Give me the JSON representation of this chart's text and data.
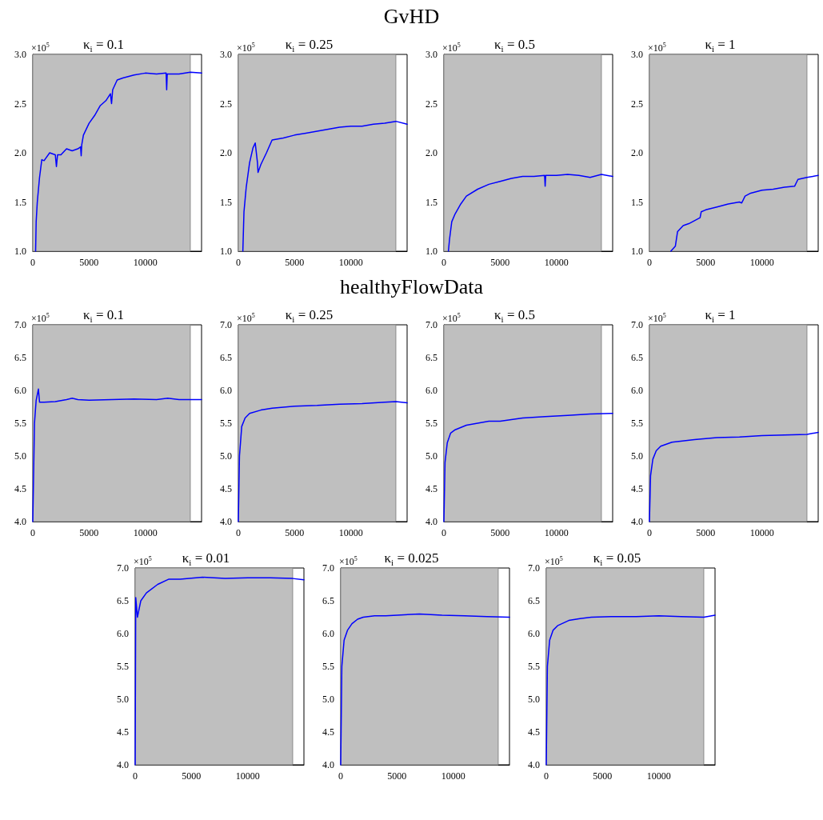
{
  "chart_data": [
    {
      "type": "other",
      "title": "GvHD"
    },
    {
      "type": "line",
      "title": "κ$_{i}$ = 0.1",
      "annotations": [
        "×10$^{5}$"
      ],
      "color": "#0000ff",
      "marker": "none",
      "line_style": "solid",
      "grid": false,
      "xlim": [
        0,
        15000
      ],
      "xticks": [
        0,
        5000,
        10000
      ],
      "ylim": [
        1,
        3
      ],
      "yticks": [
        {
          "value": 1,
          "label": "1.0"
        },
        {
          "value": 1.5,
          "label": "1.5"
        },
        {
          "value": 2,
          "label": "2.0"
        },
        {
          "value": 2.5,
          "label": "2.5"
        },
        {
          "value": 3,
          "label": "3.0"
        }
      ],
      "bands": [
        {
          "axis": "x",
          "from": 0,
          "to": 14000,
          "color": "#bfbfbf"
        }
      ],
      "x": [
        250,
        300,
        400,
        600,
        800,
        1000,
        1500,
        2000,
        2100,
        2200,
        2500,
        3000,
        3500,
        4000,
        4250,
        4300,
        4350,
        4500,
        5000,
        5500,
        6000,
        6500,
        6900,
        7000,
        7100,
        7500,
        8000,
        9000,
        10000,
        11000,
        11850,
        11900,
        11950,
        13000,
        14000,
        15000
      ],
      "values": [
        1.0,
        1.3,
        1.5,
        1.75,
        1.93,
        1.92,
        2.0,
        1.98,
        1.86,
        1.98,
        1.98,
        2.04,
        2.02,
        2.04,
        2.06,
        1.97,
        2.08,
        2.18,
        2.3,
        2.38,
        2.48,
        2.53,
        2.6,
        2.5,
        2.64,
        2.74,
        2.76,
        2.79,
        2.81,
        2.8,
        2.81,
        2.64,
        2.8,
        2.8,
        2.82,
        2.81
      ]
    },
    {
      "type": "line",
      "title": "κ$_{i}$ = 0.25",
      "annotations": [
        "×10$^{5}$"
      ],
      "color": "#0000ff",
      "marker": "none",
      "line_style": "solid",
      "grid": false,
      "xlim": [
        0,
        15000
      ],
      "xticks": [
        0,
        5000,
        10000
      ],
      "ylim": [
        1,
        3
      ],
      "yticks": [
        {
          "value": 1,
          "label": "1.0"
        },
        {
          "value": 1.5,
          "label": "1.5"
        },
        {
          "value": 2,
          "label": "2.0"
        },
        {
          "value": 2.5,
          "label": "2.5"
        },
        {
          "value": 3,
          "label": "3.0"
        }
      ],
      "bands": [
        {
          "axis": "x",
          "from": 0,
          "to": 14000,
          "color": "#bfbfbf"
        }
      ],
      "x": [
        400,
        500,
        700,
        1000,
        1300,
        1500,
        1700,
        1750,
        2000,
        2500,
        3000,
        4000,
        5000,
        6000,
        7000,
        8000,
        9000,
        10000,
        11000,
        12000,
        13000,
        14000,
        15000
      ],
      "values": [
        1.0,
        1.4,
        1.65,
        1.9,
        2.05,
        2.1,
        1.9,
        1.8,
        1.88,
        2.0,
        2.13,
        2.15,
        2.18,
        2.2,
        2.22,
        2.24,
        2.26,
        2.27,
        2.27,
        2.29,
        2.3,
        2.32,
        2.29
      ]
    },
    {
      "type": "line",
      "title": "κ$_{i}$ = 0.5",
      "annotations": [
        "×10$^{5}$"
      ],
      "color": "#0000ff",
      "marker": "none",
      "line_style": "solid",
      "grid": false,
      "xlim": [
        0,
        15000
      ],
      "xticks": [
        0,
        5000,
        10000
      ],
      "ylim": [
        1,
        3
      ],
      "yticks": [
        {
          "value": 1,
          "label": "1.0"
        },
        {
          "value": 1.5,
          "label": "1.5"
        },
        {
          "value": 2,
          "label": "2.0"
        },
        {
          "value": 2.5,
          "label": "2.5"
        },
        {
          "value": 3,
          "label": "3.0"
        }
      ],
      "bands": [
        {
          "axis": "x",
          "from": 0,
          "to": 14000,
          "color": "#bfbfbf"
        }
      ],
      "x": [
        400,
        500,
        700,
        1000,
        1500,
        2000,
        3000,
        4000,
        5000,
        6000,
        7000,
        8000,
        8950,
        9000,
        9050,
        10000,
        11000,
        12000,
        13000,
        14000,
        15000
      ],
      "values": [
        1.0,
        1.12,
        1.3,
        1.38,
        1.48,
        1.56,
        1.63,
        1.68,
        1.71,
        1.74,
        1.76,
        1.76,
        1.77,
        1.66,
        1.77,
        1.77,
        1.78,
        1.77,
        1.75,
        1.78,
        1.76
      ]
    },
    {
      "type": "line",
      "title": "κ$_{i}$ = 1",
      "annotations": [
        "×10$^{5}$"
      ],
      "color": "#0000ff",
      "marker": "none",
      "line_style": "solid",
      "grid": false,
      "xlim": [
        0,
        15000
      ],
      "xticks": [
        0,
        5000,
        10000
      ],
      "ylim": [
        1,
        3
      ],
      "yticks": [
        {
          "value": 1,
          "label": "1.0"
        },
        {
          "value": 1.5,
          "label": "1.5"
        },
        {
          "value": 2,
          "label": "2.0"
        },
        {
          "value": 2.5,
          "label": "2.5"
        },
        {
          "value": 3,
          "label": "3.0"
        }
      ],
      "bands": [
        {
          "axis": "x",
          "from": 0,
          "to": 14000,
          "color": "#bfbfbf"
        }
      ],
      "x": [
        1900,
        2300,
        2500,
        3000,
        3500,
        4000,
        4500,
        4600,
        5000,
        6000,
        7000,
        8000,
        8200,
        8500,
        9000,
        10000,
        11000,
        12000,
        12900,
        13200,
        14000,
        15000
      ],
      "values": [
        1.0,
        1.05,
        1.2,
        1.26,
        1.28,
        1.31,
        1.34,
        1.4,
        1.42,
        1.45,
        1.48,
        1.5,
        1.49,
        1.56,
        1.59,
        1.62,
        1.63,
        1.65,
        1.66,
        1.73,
        1.75,
        1.77
      ]
    },
    {
      "type": "other",
      "title": "healthyFlowData"
    },
    {
      "type": "line",
      "title": "κ$_{i}$ = 0.1",
      "annotations": [
        "×10$^{5}$"
      ],
      "color": "#0000ff",
      "marker": "none",
      "line_style": "solid",
      "grid": false,
      "xlim": [
        0,
        15000
      ],
      "xticks": [
        0,
        5000,
        10000
      ],
      "ylim": [
        4,
        7
      ],
      "yticks": [
        {
          "value": 4,
          "label": "4.0"
        },
        4.5,
        {
          "value": 5,
          "label": "5.0"
        },
        5.5,
        {
          "value": 6,
          "label": "6.0"
        },
        6.5,
        {
          "value": 7,
          "label": "7.0"
        }
      ],
      "bands": [
        {
          "axis": "x",
          "from": 0,
          "to": 14000,
          "color": "#bfbfbf"
        }
      ],
      "x": [
        0,
        150,
        300,
        500,
        600,
        1000,
        2000,
        3000,
        3500,
        4000,
        5000,
        7000,
        9000,
        11000,
        12000,
        13000,
        15000
      ],
      "values": [
        4.0,
        5.5,
        5.85,
        6.02,
        5.82,
        5.82,
        5.83,
        5.86,
        5.88,
        5.86,
        5.85,
        5.86,
        5.87,
        5.86,
        5.88,
        5.86,
        5.86
      ]
    },
    {
      "type": "line",
      "title": "κ$_{i}$ = 0.25",
      "annotations": [
        "×10$^{5}$"
      ],
      "color": "#0000ff",
      "marker": "none",
      "line_style": "solid",
      "grid": false,
      "xlim": [
        0,
        15000
      ],
      "xticks": [
        0,
        5000,
        10000
      ],
      "ylim": [
        4,
        7
      ],
      "yticks": [
        {
          "value": 4,
          "label": "4.0"
        },
        4.5,
        {
          "value": 5,
          "label": "5.0"
        },
        5.5,
        {
          "value": 6,
          "label": "6.0"
        },
        6.5,
        {
          "value": 7,
          "label": "7.0"
        }
      ],
      "bands": [
        {
          "axis": "x",
          "from": 0,
          "to": 14000,
          "color": "#bfbfbf"
        }
      ],
      "x": [
        0,
        100,
        300,
        600,
        1000,
        2000,
        3000,
        5000,
        7000,
        9000,
        11000,
        13000,
        14000,
        15000
      ],
      "values": [
        4.0,
        5.0,
        5.45,
        5.58,
        5.65,
        5.7,
        5.73,
        5.76,
        5.77,
        5.79,
        5.8,
        5.82,
        5.83,
        5.81
      ]
    },
    {
      "type": "line",
      "title": "κ$_{i}$ = 0.5",
      "annotations": [
        "×10$^{5}$"
      ],
      "color": "#0000ff",
      "marker": "none",
      "line_style": "solid",
      "grid": false,
      "xlim": [
        0,
        15000
      ],
      "xticks": [
        0,
        5000,
        10000
      ],
      "ylim": [
        4,
        7
      ],
      "yticks": [
        {
          "value": 4,
          "label": "4.0"
        },
        4.5,
        {
          "value": 5,
          "label": "5.0"
        },
        5.5,
        {
          "value": 6,
          "label": "6.0"
        },
        6.5,
        {
          "value": 7,
          "label": "7.0"
        }
      ],
      "bands": [
        {
          "axis": "x",
          "from": 0,
          "to": 14000,
          "color": "#bfbfbf"
        }
      ],
      "x": [
        0,
        100,
        300,
        600,
        1000,
        2000,
        3000,
        4000,
        5000,
        7000,
        9000,
        11000,
        13000,
        15000
      ],
      "values": [
        4.0,
        4.9,
        5.2,
        5.35,
        5.4,
        5.47,
        5.5,
        5.53,
        5.53,
        5.58,
        5.6,
        5.62,
        5.64,
        5.65
      ]
    },
    {
      "type": "line",
      "title": "κ$_{i}$ = 1",
      "annotations": [
        "×10$^{5}$"
      ],
      "color": "#0000ff",
      "marker": "none",
      "line_style": "solid",
      "grid": false,
      "xlim": [
        0,
        15000
      ],
      "xticks": [
        0,
        5000,
        10000
      ],
      "ylim": [
        4,
        7
      ],
      "yticks": [
        {
          "value": 4,
          "label": "4.0"
        },
        4.5,
        {
          "value": 5,
          "label": "5.0"
        },
        5.5,
        {
          "value": 6,
          "label": "6.0"
        },
        6.5,
        {
          "value": 7,
          "label": "7.0"
        }
      ],
      "bands": [
        {
          "axis": "x",
          "from": 0,
          "to": 14000,
          "color": "#bfbfbf"
        }
      ],
      "x": [
        0,
        100,
        300,
        600,
        1000,
        2000,
        4000,
        6000,
        8000,
        10000,
        12000,
        14000,
        15000
      ],
      "values": [
        4.0,
        4.7,
        4.95,
        5.08,
        5.15,
        5.21,
        5.25,
        5.28,
        5.29,
        5.31,
        5.32,
        5.33,
        5.36
      ]
    },
    {
      "type": "line",
      "title": "κ$_{i}$ = 0.01",
      "annotations": [
        "×10$^{5}$"
      ],
      "color": "#0000ff",
      "marker": "none",
      "line_style": "solid",
      "grid": false,
      "xlim": [
        0,
        15000
      ],
      "xticks": [
        0,
        5000,
        10000
      ],
      "ylim": [
        4,
        7
      ],
      "yticks": [
        {
          "value": 4,
          "label": "4.0"
        },
        4.5,
        {
          "value": 5,
          "label": "5.0"
        },
        5.5,
        {
          "value": 6,
          "label": "6.0"
        },
        6.5,
        {
          "value": 7,
          "label": "7.0"
        }
      ],
      "bands": [
        {
          "axis": "x",
          "from": 0,
          "to": 14000,
          "color": "#bfbfbf"
        }
      ],
      "x": [
        0,
        50,
        200,
        500,
        1000,
        2000,
        3000,
        4000,
        6000,
        8000,
        10000,
        12000,
        14000,
        15000
      ],
      "values": [
        4.0,
        6.55,
        6.25,
        6.5,
        6.62,
        6.75,
        6.83,
        6.83,
        6.86,
        6.84,
        6.85,
        6.85,
        6.84,
        6.82
      ]
    },
    {
      "type": "line",
      "title": "κ$_{i}$ = 0.025",
      "annotations": [
        "×10$^{5}$"
      ],
      "color": "#0000ff",
      "marker": "none",
      "line_style": "solid",
      "grid": false,
      "xlim": [
        0,
        15000
      ],
      "xticks": [
        0,
        5000,
        10000
      ],
      "ylim": [
        4,
        7
      ],
      "yticks": [
        {
          "value": 4,
          "label": "4.0"
        },
        4.5,
        {
          "value": 5,
          "label": "5.0"
        },
        5.5,
        {
          "value": 6,
          "label": "6.0"
        },
        6.5,
        {
          "value": 7,
          "label": "7.0"
        }
      ],
      "bands": [
        {
          "axis": "x",
          "from": 0,
          "to": 14000,
          "color": "#bfbfbf"
        }
      ],
      "x": [
        0,
        100,
        300,
        600,
        1000,
        1500,
        2000,
        3000,
        4000,
        5000,
        7000,
        9000,
        11000,
        13000,
        15000
      ],
      "values": [
        4.0,
        5.5,
        5.9,
        6.05,
        6.15,
        6.22,
        6.25,
        6.27,
        6.27,
        6.28,
        6.3,
        6.28,
        6.27,
        6.26,
        6.25
      ]
    },
    {
      "type": "line",
      "title": "κ$_{i}$ = 0.05",
      "annotations": [
        "×10$^{5}$"
      ],
      "color": "#0000ff",
      "marker": "none",
      "line_style": "solid",
      "grid": false,
      "xlim": [
        0,
        15000
      ],
      "xticks": [
        0,
        5000,
        10000
      ],
      "ylim": [
        4,
        7
      ],
      "yticks": [
        {
          "value": 4,
          "label": "4.0"
        },
        4.5,
        {
          "value": 5,
          "label": "5.0"
        },
        5.5,
        {
          "value": 6,
          "label": "6.0"
        },
        6.5,
        {
          "value": 7,
          "label": "7.0"
        }
      ],
      "bands": [
        {
          "axis": "x",
          "from": 0,
          "to": 14000,
          "color": "#bfbfbf"
        }
      ],
      "x": [
        0,
        100,
        300,
        600,
        1000,
        2000,
        3000,
        4000,
        6000,
        8000,
        10000,
        12000,
        14000,
        15000
      ],
      "values": [
        4.0,
        5.5,
        5.9,
        6.05,
        6.12,
        6.2,
        6.23,
        6.25,
        6.26,
        6.26,
        6.27,
        6.26,
        6.25,
        6.28
      ]
    }
  ]
}
